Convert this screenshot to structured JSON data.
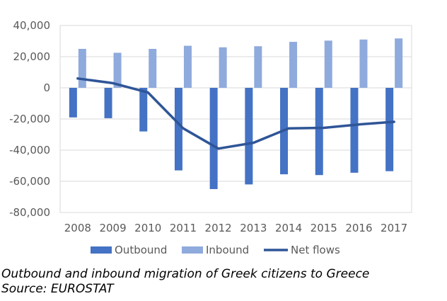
{
  "chart_data": {
    "type": "bar",
    "categories": [
      "2008",
      "2009",
      "2010",
      "2011",
      "2012",
      "2013",
      "2014",
      "2015",
      "2016",
      "2017"
    ],
    "series": [
      {
        "name": "Outbound",
        "type": "bar",
        "color": "#4472C4",
        "values": [
          -19000,
          -19500,
          -28000,
          -53000,
          -65000,
          -62000,
          -55500,
          -56000,
          -54500,
          -53500
        ]
      },
      {
        "name": "Inbound",
        "type": "bar",
        "color": "#8FAADC",
        "values": [
          25000,
          22500,
          25000,
          27000,
          26000,
          26700,
          29500,
          30300,
          31000,
          31700
        ]
      },
      {
        "name": "Net flows",
        "type": "line",
        "color": "#2F5597",
        "values": [
          6000,
          3000,
          -3000,
          -26000,
          -39000,
          -35300,
          -26000,
          -25700,
          -23500,
          -21800
        ]
      }
    ],
    "ylim": [
      -80000,
      40000
    ],
    "yticks": [
      40000,
      20000,
      0,
      -20000,
      -40000,
      -60000,
      -80000
    ],
    "ytick_labels": [
      "40,000",
      "20,000",
      "0",
      "-20,000",
      "-40,000",
      "-60,000",
      "-80,000"
    ],
    "grid": true,
    "legend_position": "bottom"
  },
  "caption": {
    "line1": "Outbound and inbound migration of Greek citizens to Greece",
    "line2": "Source: EUROSTAT"
  }
}
